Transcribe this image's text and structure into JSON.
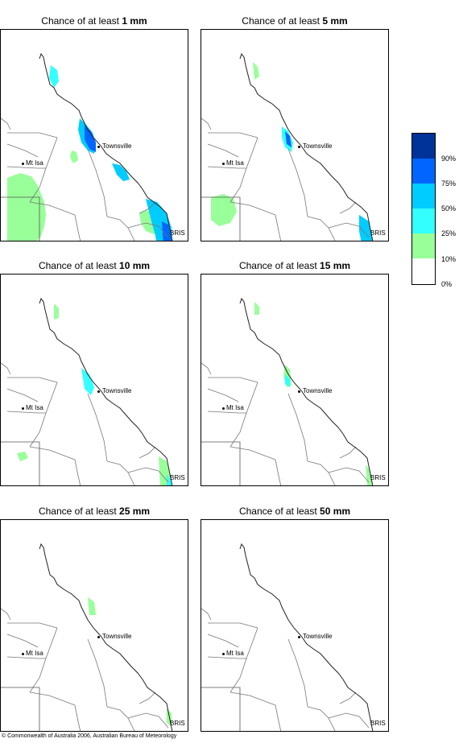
{
  "panels": [
    {
      "title_prefix": "Chance of at least ",
      "threshold": "1 mm"
    },
    {
      "title_prefix": "Chance of at least ",
      "threshold": "5 mm"
    },
    {
      "title_prefix": "Chance of at least ",
      "threshold": "10 mm"
    },
    {
      "title_prefix": "Chance of at least ",
      "threshold": "15 mm"
    },
    {
      "title_prefix": "Chance of at least ",
      "threshold": "25 mm"
    },
    {
      "title_prefix": "Chance of at least ",
      "threshold": "50 mm"
    }
  ],
  "places": {
    "townsville": "Townsville",
    "mt_isa": "Mt Isa",
    "brisbane": "BRIS"
  },
  "legend": {
    "ticks": [
      "90%",
      "75%",
      "50%",
      "25%",
      "10%",
      "0%"
    ],
    "colors": [
      "#003399",
      "#0066ff",
      "#00ccff",
      "#33ffff",
      "#99ff99",
      "#ffffff"
    ]
  },
  "copyright": "© Commonwealth of Australia 2006, Australian Bureau of Meteorology"
}
